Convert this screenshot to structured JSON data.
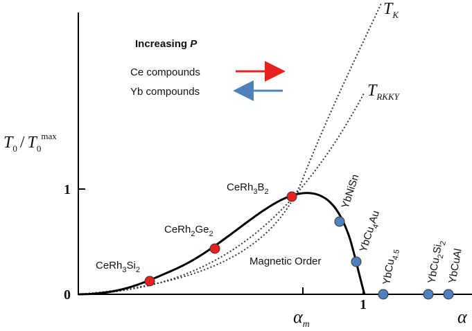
{
  "title": [
    "Increasing ",
    "P"
  ],
  "legend": {
    "ce": "Ce compounds",
    "yb": "Yb compounds"
  },
  "curves": {
    "kondo": [
      "T",
      "K"
    ],
    "rkky": [
      "T",
      "RKKY"
    ]
  },
  "y_label": [
    "T",
    "0",
    "/",
    "T",
    "0",
    "max"
  ],
  "y_ticks": [
    "1",
    "0"
  ],
  "x_ticks": {
    "one": "1",
    "alpha_m": [
      "α",
      "m"
    ],
    "alpha": "α"
  },
  "region": "Magnetic Order",
  "ce_compounds": [
    [
      "CeRh",
      "3",
      "B",
      "2"
    ],
    [
      "CeRh",
      "2",
      "Ge",
      "2"
    ],
    [
      "CeRh",
      "3",
      "Si",
      "2"
    ]
  ],
  "yb_compounds": [
    [
      "YbNiSn"
    ],
    [
      "YbCu",
      "4",
      "Au"
    ],
    [
      "YbCu",
      "4.5"
    ],
    [
      "YbCu",
      "2",
      "Si",
      "2"
    ],
    [
      "YbCuAl"
    ]
  ]
}
